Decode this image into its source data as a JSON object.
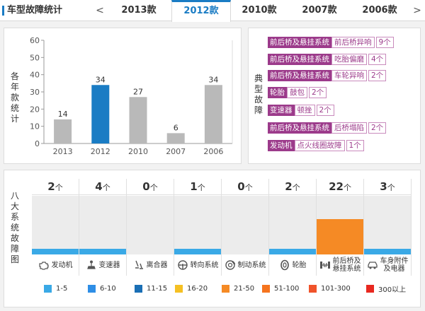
{
  "header": {
    "title": "车型故障统计",
    "prev_arrow": "<",
    "next_arrow": ">",
    "tabs": [
      {
        "label": "2013款",
        "active": false
      },
      {
        "label": "2012款",
        "active": true
      },
      {
        "label": "2010款",
        "active": false
      },
      {
        "label": "2007款",
        "active": false
      },
      {
        "label": "2006款",
        "active": false
      }
    ]
  },
  "year_chart": {
    "vertical_label": [
      "各",
      "年",
      "款",
      "统",
      "计"
    ]
  },
  "chart_data": {
    "type": "bar",
    "categories": [
      "2013",
      "2012",
      "2010",
      "2007",
      "2006"
    ],
    "values": [
      14,
      34,
      27,
      6,
      34
    ],
    "highlight_index": 1,
    "colors": {
      "default": "#b9b9b9",
      "highlight": "#1a7cc4"
    },
    "ylim": [
      0,
      60
    ],
    "yticks": [
      0,
      10,
      20,
      30,
      40,
      50,
      60
    ],
    "grid": false
  },
  "typical_faults": {
    "vertical_label": [
      "典",
      "型",
      "故",
      "障"
    ],
    "items": [
      {
        "system": "前后桥及悬挂系统",
        "fault": "前后桥异响",
        "count": "9个"
      },
      {
        "system": "前后桥及悬挂系统",
        "fault": "吃胎偏磨",
        "count": "4个"
      },
      {
        "system": "前后桥及悬挂系统",
        "fault": "车轮异响",
        "count": "2个"
      },
      {
        "system": "轮胎",
        "fault": "鼓包",
        "count": "2个"
      },
      {
        "system": "变速器",
        "fault": "顿挫",
        "count": "2个"
      },
      {
        "system": "前后桥及悬挂系统",
        "fault": "后桥塌陷",
        "count": "2个"
      },
      {
        "system": "发动机",
        "fault": "点火线圈故障",
        "count": "1个"
      }
    ]
  },
  "systems": {
    "vertical_label": [
      "八",
      "大",
      "系",
      "统",
      "故",
      "障",
      "图"
    ],
    "unit": "个",
    "items": [
      {
        "name": "发动机",
        "count": 2,
        "level": 0.1,
        "color": "#3aa9e6",
        "icon": "engine-icon"
      },
      {
        "name": "变速器",
        "count": 4,
        "level": 0.1,
        "color": "#3aa9e6",
        "icon": "gearshift-icon"
      },
      {
        "name": "离合器",
        "count": 0,
        "level": 0,
        "color": "#3aa9e6",
        "icon": "clutch-pedal-icon"
      },
      {
        "name": "转向系统",
        "count": 1,
        "level": 0.1,
        "color": "#3aa9e6",
        "icon": "steering-wheel-icon"
      },
      {
        "name": "制动系统",
        "count": 0,
        "level": 0,
        "color": "#3aa9e6",
        "icon": "brake-disc-icon"
      },
      {
        "name": "轮胎",
        "count": 2,
        "level": 0.1,
        "color": "#3aa9e6",
        "icon": "tire-icon"
      },
      {
        "name": "前后桥及\n悬挂系统",
        "count": 22,
        "level": 0.6,
        "color": "#f58a25",
        "icon": "suspension-icon"
      },
      {
        "name": "车身附件\n及电器",
        "count": 3,
        "level": 0.1,
        "color": "#3aa9e6",
        "icon": "car-body-icon"
      }
    ]
  },
  "legend": [
    {
      "label": "1-5",
      "color": "#3aa9e6"
    },
    {
      "label": "6-10",
      "color": "#2e8ee6"
    },
    {
      "label": "11-15",
      "color": "#1a6fb5"
    },
    {
      "label": "16-20",
      "color": "#f5c023"
    },
    {
      "label": "21-50",
      "color": "#f58a25"
    },
    {
      "label": "51-100",
      "color": "#f5741e"
    },
    {
      "label": "101-300",
      "color": "#f0532a"
    },
    {
      "label": "300以上",
      "color": "#e8281f"
    }
  ]
}
